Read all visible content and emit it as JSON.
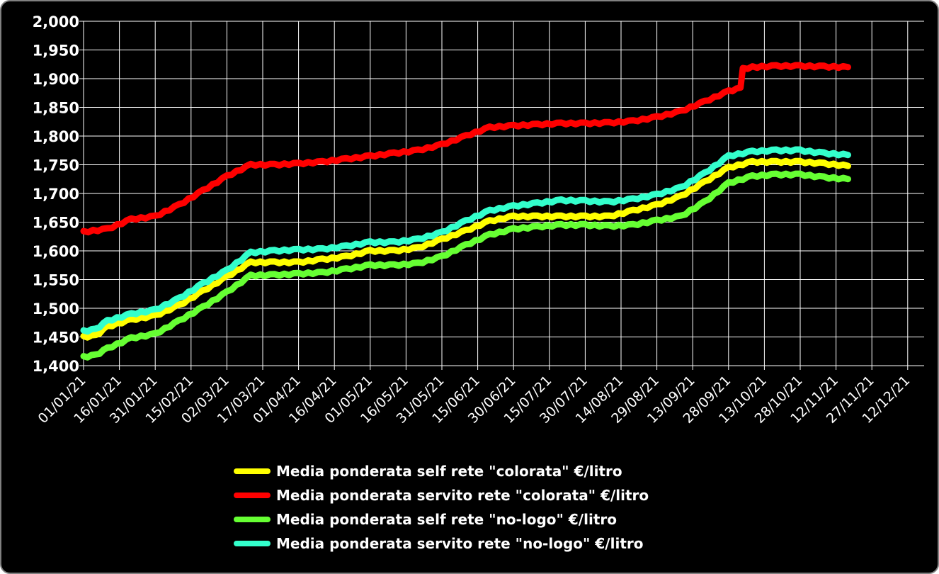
{
  "chart_data": {
    "type": "line",
    "title": "",
    "xlabel": "",
    "ylabel": "",
    "ylim": [
      1.4,
      2.0
    ],
    "y_ticks": [
      "2,000",
      "1,950",
      "1,900",
      "1,850",
      "1,800",
      "1,750",
      "1,700",
      "1,650",
      "1,600",
      "1,550",
      "1,500",
      "1,450",
      "1,400"
    ],
    "x_ticks": [
      "01/01/21",
      "16/01/21",
      "31/01/21",
      "15/02/21",
      "02/03/21",
      "17/03/21",
      "01/04/21",
      "16/04/21",
      "01/05/21",
      "16/05/21",
      "31/05/21",
      "15/06/21",
      "30/06/21",
      "15/07/21",
      "30/07/21",
      "14/08/21",
      "29/08/21",
      "13/09/21",
      "28/09/21",
      "13/10/21",
      "28/10/21",
      "12/11/21",
      "27/11/21",
      "12/12/21"
    ],
    "grid": true,
    "legend_position": "bottom",
    "x_unit": "days since 01/01/21",
    "series": [
      {
        "name": "Media ponderata self rete \"colorata\" €/litro",
        "color": "#ffff00",
        "points": [
          [
            0,
            1.45
          ],
          [
            5,
            1.452
          ],
          [
            10,
            1.468
          ],
          [
            20,
            1.48
          ],
          [
            30,
            1.487
          ],
          [
            40,
            1.505
          ],
          [
            50,
            1.53
          ],
          [
            60,
            1.555
          ],
          [
            70,
            1.58
          ],
          [
            80,
            1.58
          ],
          [
            90,
            1.58
          ],
          [
            100,
            1.585
          ],
          [
            110,
            1.59
          ],
          [
            120,
            1.6
          ],
          [
            130,
            1.6
          ],
          [
            140,
            1.605
          ],
          [
            150,
            1.62
          ],
          [
            160,
            1.635
          ],
          [
            170,
            1.652
          ],
          [
            180,
            1.66
          ],
          [
            190,
            1.66
          ],
          [
            200,
            1.66
          ],
          [
            210,
            1.66
          ],
          [
            220,
            1.66
          ],
          [
            230,
            1.67
          ],
          [
            240,
            1.68
          ],
          [
            250,
            1.695
          ],
          [
            260,
            1.72
          ],
          [
            270,
            1.745
          ],
          [
            280,
            1.755
          ],
          [
            290,
            1.755
          ],
          [
            300,
            1.755
          ],
          [
            310,
            1.752
          ],
          [
            320,
            1.748
          ]
        ]
      },
      {
        "name": "Media ponderata servito rete \"colorata\" €/litro",
        "color": "#ff0000",
        "points": [
          [
            0,
            1.633
          ],
          [
            10,
            1.638
          ],
          [
            20,
            1.655
          ],
          [
            30,
            1.66
          ],
          [
            40,
            1.68
          ],
          [
            50,
            1.705
          ],
          [
            60,
            1.73
          ],
          [
            70,
            1.75
          ],
          [
            80,
            1.75
          ],
          [
            90,
            1.752
          ],
          [
            100,
            1.755
          ],
          [
            110,
            1.76
          ],
          [
            120,
            1.765
          ],
          [
            130,
            1.77
          ],
          [
            140,
            1.775
          ],
          [
            150,
            1.785
          ],
          [
            160,
            1.8
          ],
          [
            170,
            1.815
          ],
          [
            180,
            1.818
          ],
          [
            190,
            1.82
          ],
          [
            200,
            1.822
          ],
          [
            210,
            1.822
          ],
          [
            220,
            1.823
          ],
          [
            230,
            1.826
          ],
          [
            240,
            1.833
          ],
          [
            250,
            1.843
          ],
          [
            260,
            1.86
          ],
          [
            270,
            1.878
          ],
          [
            275,
            1.883
          ],
          [
            276,
            1.917
          ],
          [
            280,
            1.92
          ],
          [
            290,
            1.922
          ],
          [
            300,
            1.922
          ],
          [
            310,
            1.921
          ],
          [
            320,
            1.92
          ]
        ]
      },
      {
        "name": "Media ponderata self rete \"no-logo\" €/litro",
        "color": "#66ff33",
        "points": [
          [
            0,
            1.415
          ],
          [
            5,
            1.418
          ],
          [
            10,
            1.43
          ],
          [
            20,
            1.448
          ],
          [
            30,
            1.455
          ],
          [
            40,
            1.478
          ],
          [
            50,
            1.502
          ],
          [
            60,
            1.528
          ],
          [
            70,
            1.557
          ],
          [
            80,
            1.558
          ],
          [
            90,
            1.56
          ],
          [
            100,
            1.562
          ],
          [
            110,
            1.568
          ],
          [
            120,
            1.575
          ],
          [
            130,
            1.575
          ],
          [
            140,
            1.578
          ],
          [
            150,
            1.59
          ],
          [
            160,
            1.61
          ],
          [
            170,
            1.628
          ],
          [
            180,
            1.638
          ],
          [
            190,
            1.642
          ],
          [
            200,
            1.645
          ],
          [
            210,
            1.645
          ],
          [
            220,
            1.643
          ],
          [
            230,
            1.645
          ],
          [
            240,
            1.653
          ],
          [
            250,
            1.66
          ],
          [
            260,
            1.685
          ],
          [
            270,
            1.718
          ],
          [
            280,
            1.73
          ],
          [
            290,
            1.733
          ],
          [
            300,
            1.733
          ],
          [
            310,
            1.728
          ],
          [
            320,
            1.725
          ]
        ]
      },
      {
        "name": "Media ponderata servito rete \"no-logo\" €/litro",
        "color": "#33ffcc",
        "points": [
          [
            0,
            1.46
          ],
          [
            5,
            1.463
          ],
          [
            10,
            1.478
          ],
          [
            20,
            1.49
          ],
          [
            30,
            1.497
          ],
          [
            40,
            1.517
          ],
          [
            50,
            1.543
          ],
          [
            60,
            1.566
          ],
          [
            70,
            1.597
          ],
          [
            80,
            1.6
          ],
          [
            90,
            1.602
          ],
          [
            100,
            1.603
          ],
          [
            110,
            1.608
          ],
          [
            120,
            1.615
          ],
          [
            130,
            1.615
          ],
          [
            140,
            1.62
          ],
          [
            150,
            1.632
          ],
          [
            160,
            1.652
          ],
          [
            170,
            1.67
          ],
          [
            180,
            1.678
          ],
          [
            190,
            1.683
          ],
          [
            200,
            1.688
          ],
          [
            210,
            1.687
          ],
          [
            220,
            1.685
          ],
          [
            230,
            1.69
          ],
          [
            240,
            1.698
          ],
          [
            250,
            1.71
          ],
          [
            260,
            1.735
          ],
          [
            270,
            1.765
          ],
          [
            280,
            1.773
          ],
          [
            290,
            1.775
          ],
          [
            300,
            1.775
          ],
          [
            310,
            1.77
          ],
          [
            320,
            1.767
          ]
        ]
      }
    ]
  }
}
